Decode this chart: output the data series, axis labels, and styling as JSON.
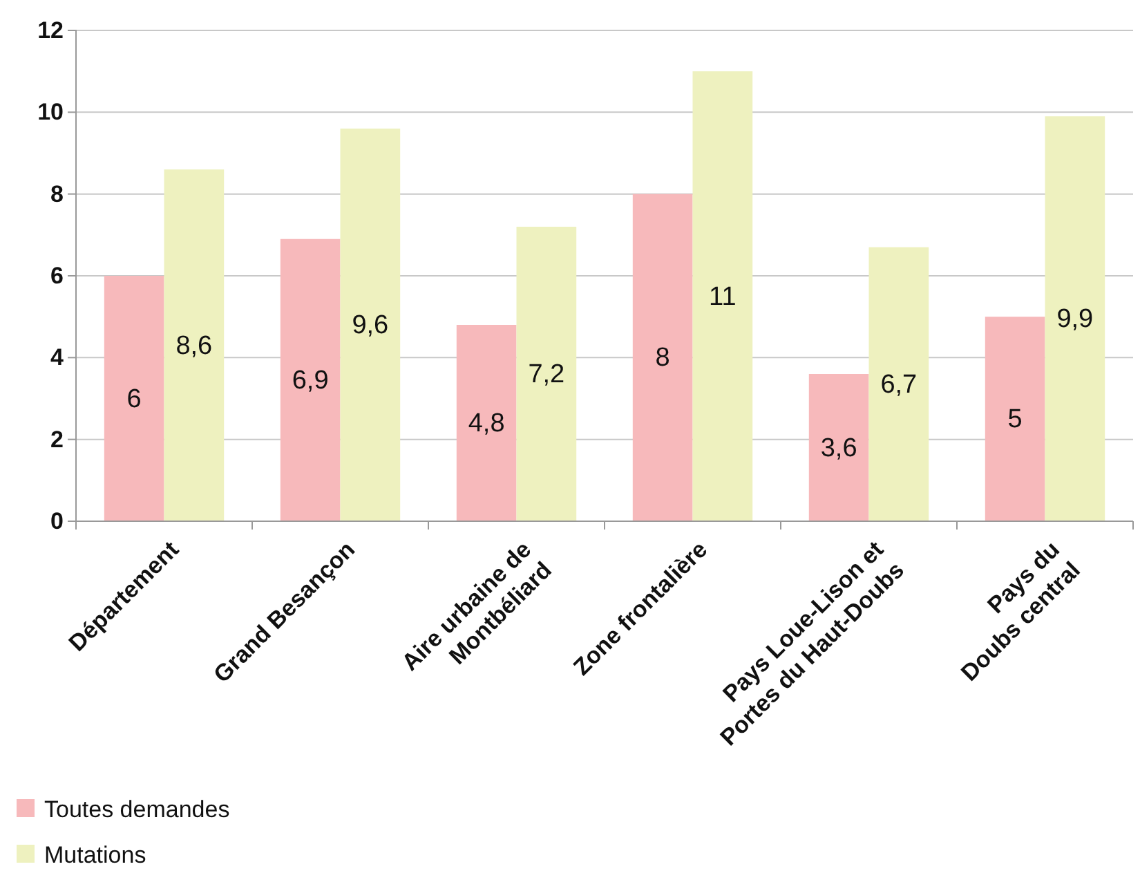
{
  "chart_data": {
    "type": "bar",
    "categories": [
      "Département",
      "Grand Besançon",
      "Aire urbaine de\nMontbéliard",
      "Zone frontalière",
      "Pays Loue-Lison et\nPortes du Haut-Doubs",
      "Pays du\nDoubs central"
    ],
    "series": [
      {
        "name": "Toutes demandes",
        "color": "#f7b9bb",
        "values": [
          6,
          6.9,
          4.8,
          8,
          3.6,
          5
        ],
        "value_labels": [
          "6",
          "6,9",
          "4,8",
          "8",
          "3,6",
          "5"
        ]
      },
      {
        "name": "Mutations",
        "color": "#eef1bf",
        "values": [
          8.6,
          9.6,
          7.2,
          11,
          6.7,
          9.9
        ],
        "value_labels": [
          "8,6",
          "9,6",
          "7,2",
          "11",
          "6,7",
          "9,9"
        ]
      }
    ],
    "ylim": [
      0,
      12
    ],
    "yticks": [
      0,
      2,
      4,
      6,
      8,
      10,
      12
    ],
    "grid": "y",
    "legend": "bottom left"
  }
}
